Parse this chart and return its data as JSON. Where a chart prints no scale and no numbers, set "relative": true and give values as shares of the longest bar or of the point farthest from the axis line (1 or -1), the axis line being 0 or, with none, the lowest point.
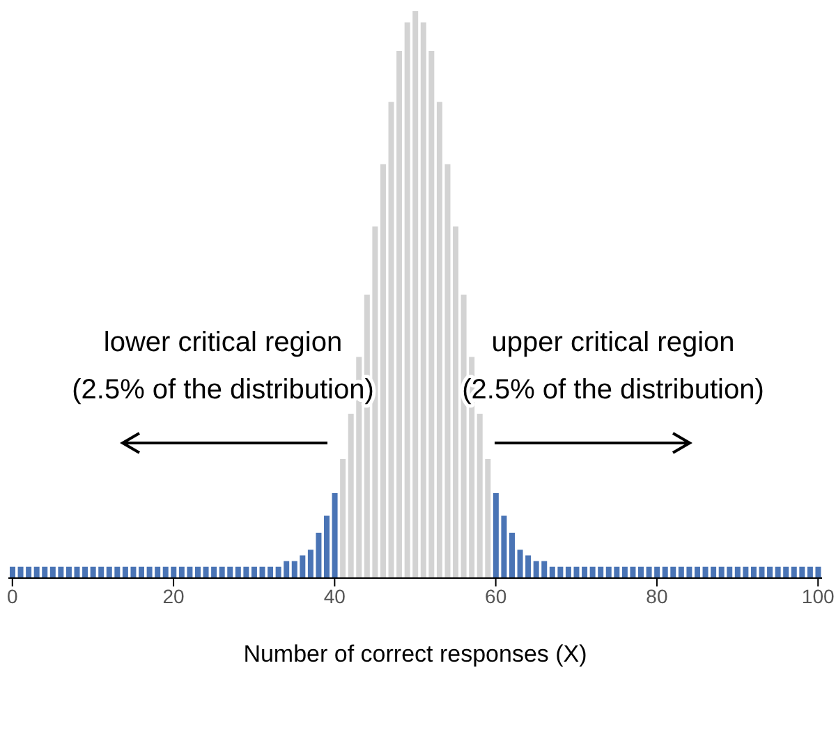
{
  "chart_data": {
    "type": "bar",
    "relative": true,
    "xlabel": "Number of correct responses (X)",
    "x": [
      0,
      1,
      2,
      3,
      4,
      5,
      6,
      7,
      8,
      9,
      10,
      11,
      12,
      13,
      14,
      15,
      16,
      17,
      18,
      19,
      20,
      21,
      22,
      23,
      24,
      25,
      26,
      27,
      28,
      29,
      30,
      31,
      32,
      33,
      34,
      35,
      36,
      37,
      38,
      39,
      40,
      41,
      42,
      43,
      44,
      45,
      46,
      47,
      48,
      49,
      50,
      51,
      52,
      53,
      54,
      55,
      56,
      57,
      58,
      59,
      60,
      61,
      62,
      63,
      64,
      65,
      66,
      67,
      68,
      69,
      70,
      71,
      72,
      73,
      74,
      75,
      76,
      77,
      78,
      79,
      80,
      81,
      82,
      83,
      84,
      85,
      86,
      87,
      88,
      89,
      90,
      91,
      92,
      93,
      94,
      95,
      96,
      97,
      98,
      99,
      100
    ],
    "values": [
      0.02,
      0.02,
      0.02,
      0.02,
      0.02,
      0.02,
      0.02,
      0.02,
      0.02,
      0.02,
      0.02,
      0.02,
      0.02,
      0.02,
      0.02,
      0.02,
      0.02,
      0.02,
      0.02,
      0.02,
      0.02,
      0.02,
      0.02,
      0.02,
      0.02,
      0.02,
      0.02,
      0.02,
      0.02,
      0.02,
      0.02,
      0.02,
      0.02,
      0.02,
      0.03,
      0.03,
      0.04,
      0.05,
      0.08,
      0.11,
      0.15,
      0.21,
      0.29,
      0.39,
      0.5,
      0.62,
      0.73,
      0.84,
      0.93,
      0.98,
      1,
      0.98,
      0.93,
      0.84,
      0.73,
      0.62,
      0.5,
      0.39,
      0.29,
      0.21,
      0.15,
      0.11,
      0.08,
      0.05,
      0.04,
      0.03,
      0.03,
      0.02,
      0.02,
      0.02,
      0.02,
      0.02,
      0.02,
      0.02,
      0.02,
      0.02,
      0.02,
      0.02,
      0.02,
      0.02,
      0.02,
      0.02,
      0.02,
      0.02,
      0.02,
      0.02,
      0.02,
      0.02,
      0.02,
      0.02,
      0.02,
      0.02,
      0.02,
      0.02,
      0.02,
      0.02,
      0.02,
      0.02,
      0.02,
      0.02,
      0.02
    ],
    "colors": [
      "#4a74b5",
      "#4a74b5",
      "#4a74b5",
      "#4a74b5",
      "#4a74b5",
      "#4a74b5",
      "#4a74b5",
      "#4a74b5",
      "#4a74b5",
      "#4a74b5",
      "#4a74b5",
      "#4a74b5",
      "#4a74b5",
      "#4a74b5",
      "#4a74b5",
      "#4a74b5",
      "#4a74b5",
      "#4a74b5",
      "#4a74b5",
      "#4a74b5",
      "#4a74b5",
      "#4a74b5",
      "#4a74b5",
      "#4a74b5",
      "#4a74b5",
      "#4a74b5",
      "#4a74b5",
      "#4a74b5",
      "#4a74b5",
      "#4a74b5",
      "#4a74b5",
      "#4a74b5",
      "#4a74b5",
      "#4a74b5",
      "#4a74b5",
      "#4a74b5",
      "#4a74b5",
      "#4a74b5",
      "#4a74b5",
      "#4a74b5",
      "#4a74b5",
      "#d3d3d3",
      "#d3d3d3",
      "#d3d3d3",
      "#d3d3d3",
      "#d3d3d3",
      "#d3d3d3",
      "#d3d3d3",
      "#d3d3d3",
      "#d3d3d3",
      "#d3d3d3",
      "#d3d3d3",
      "#d3d3d3",
      "#d3d3d3",
      "#d3d3d3",
      "#d3d3d3",
      "#d3d3d3",
      "#d3d3d3",
      "#d3d3d3",
      "#d3d3d3",
      "#4a74b5",
      "#4a74b5",
      "#4a74b5",
      "#4a74b5",
      "#4a74b5",
      "#4a74b5",
      "#4a74b5",
      "#4a74b5",
      "#4a74b5",
      "#4a74b5",
      "#4a74b5",
      "#4a74b5",
      "#4a74b5",
      "#4a74b5",
      "#4a74b5",
      "#4a74b5",
      "#4a74b5",
      "#4a74b5",
      "#4a74b5",
      "#4a74b5",
      "#4a74b5",
      "#4a74b5",
      "#4a74b5",
      "#4a74b5",
      "#4a74b5",
      "#4a74b5",
      "#4a74b5",
      "#4a74b5",
      "#4a74b5",
      "#4a74b5",
      "#4a74b5",
      "#4a74b5",
      "#4a74b5",
      "#4a74b5",
      "#4a74b5",
      "#4a74b5",
      "#4a74b5",
      "#4a74b5",
      "#4a74b5",
      "#4a74b5",
      "#4a74b5"
    ],
    "xlim": [
      -0.5,
      100.5
    ],
    "xticks": [
      0,
      20,
      40,
      60,
      80,
      100
    ],
    "annotations": [
      "lower critical region\n(2.5% of the distribution)",
      "upper critical region\n(2.5% of the distribution)"
    ]
  }
}
